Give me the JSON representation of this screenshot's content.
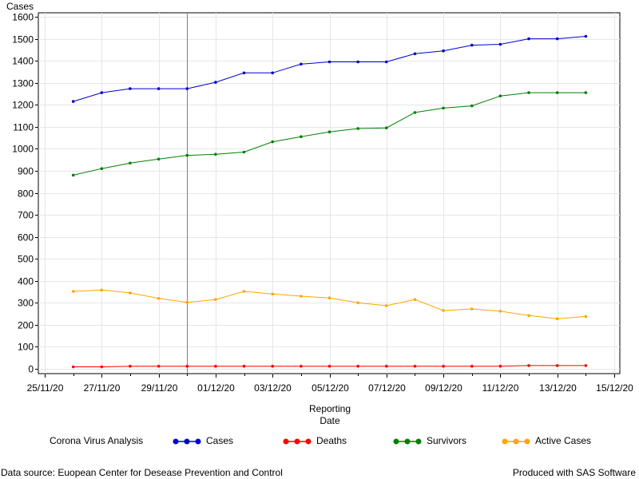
{
  "chart_data": {
    "type": "line",
    "ylabel": "Cases",
    "xlabel_lines": [
      "Reporting",
      "Date"
    ],
    "ylim": [
      0,
      1600
    ],
    "yticks": [
      0,
      100,
      200,
      300,
      400,
      500,
      600,
      700,
      800,
      900,
      1000,
      1100,
      1200,
      1300,
      1400,
      1500,
      1600
    ],
    "xlim": [
      "2020-11-25",
      "2020-12-15"
    ],
    "xtick_labels": [
      "25/11/20",
      "27/11/20",
      "29/11/20",
      "01/12/20",
      "03/12/20",
      "05/12/20",
      "07/12/20",
      "09/12/20",
      "11/12/20",
      "13/12/20",
      "15/12/20"
    ],
    "xtick_dates": [
      "2020-11-25",
      "2020-11-27",
      "2020-11-29",
      "2020-12-01",
      "2020-12-03",
      "2020-12-05",
      "2020-12-07",
      "2020-12-09",
      "2020-12-11",
      "2020-12-13",
      "2020-12-15"
    ],
    "reference_line_date": "2020-11-30",
    "grid": true,
    "legend_position": "bottom",
    "x": [
      "2020-11-26",
      "2020-11-27",
      "2020-11-28",
      "2020-11-29",
      "2020-11-30",
      "2020-12-01",
      "2020-12-02",
      "2020-12-03",
      "2020-12-04",
      "2020-12-05",
      "2020-12-06",
      "2020-12-07",
      "2020-12-08",
      "2020-12-09",
      "2020-12-10",
      "2020-12-11",
      "2020-12-12",
      "2020-12-13",
      "2020-12-14"
    ],
    "series": [
      {
        "name": "Cases",
        "color": "#0000cc",
        "values": [
          1215,
          1255,
          1273,
          1273,
          1273,
          1302,
          1345,
          1345,
          1385,
          1395,
          1395,
          1395,
          1432,
          1445,
          1471,
          1475,
          1500,
          1500,
          1511
        ]
      },
      {
        "name": "Deaths",
        "color": "#ff0000",
        "values": [
          9,
          9,
          12,
          12,
          12,
          12,
          12,
          12,
          12,
          12,
          12,
          12,
          12,
          12,
          12,
          12,
          15,
          15,
          15
        ]
      },
      {
        "name": "Survivors",
        "color": "#008000",
        "values": [
          880,
          910,
          935,
          953,
          970,
          975,
          985,
          1032,
          1055,
          1077,
          1092,
          1095,
          1165,
          1185,
          1195,
          1240,
          1255,
          1255,
          1255
        ]
      },
      {
        "name": "Active Cases",
        "color": "#ffa500",
        "values": [
          352,
          358,
          345,
          320,
          302,
          315,
          352,
          340,
          330,
          322,
          300,
          287,
          315,
          265,
          272,
          262,
          242,
          228,
          238
        ]
      }
    ]
  },
  "legend": {
    "title": "Corona Virus Analysis"
  },
  "footer": {
    "left": "Data source: Euopean Center for Desease Prevention and Control",
    "right": "Produced with SAS Software"
  }
}
